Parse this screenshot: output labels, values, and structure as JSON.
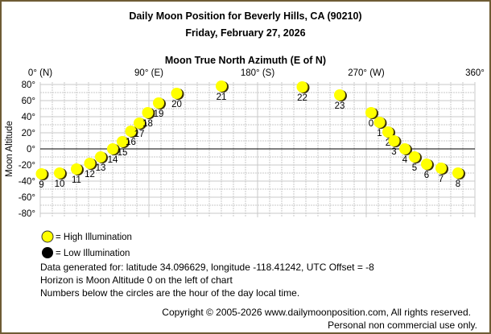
{
  "title": "Daily Moon Position for Beverly Hills, CA (90210)",
  "subtitle": "Friday, February 27, 2026",
  "legend": {
    "high": "= High Illumination",
    "low": "= Low Illumination",
    "high_color": "#ffff00",
    "low_color": "#000000"
  },
  "notes": [
    "Data generated for: latitude 34.096629, longitude -118.41242, UTC Offset = -8",
    "Horizon is Moon Altitude 0 on the left of chart",
    "Numbers below the circles are the hour of the day local time."
  ],
  "copyright": "Copyright © 2005-2026 www.dailymoonposition.com, All rights reserved.",
  "license": "Personal non commercial use only.",
  "chart_data": {
    "type": "scatter",
    "xlabel": "Moon True North Azimuth (E of N)",
    "ylabel": "Moon Altitude",
    "xlim": [
      0,
      360
    ],
    "ylim": [
      -80,
      80
    ],
    "grid": true,
    "x_ticks": [
      {
        "value": 0,
        "label": "0° (N)"
      },
      {
        "value": 90,
        "label": "90° (E)"
      },
      {
        "value": 180,
        "label": "180° (S)"
      },
      {
        "value": 270,
        "label": "270° (W)"
      },
      {
        "value": 360,
        "label": "360°"
      }
    ],
    "y_ticks": [
      {
        "value": 80,
        "label": "80°"
      },
      {
        "value": 60,
        "label": "60°"
      },
      {
        "value": 40,
        "label": "40°"
      },
      {
        "value": 20,
        "label": "20°"
      },
      {
        "value": 0,
        "label": "0°"
      },
      {
        "value": -20,
        "label": "-20°"
      },
      {
        "value": -40,
        "label": "-40°"
      },
      {
        "value": -60,
        "label": "-60°"
      },
      {
        "value": -80,
        "label": "-80°"
      }
    ],
    "illumination": "high",
    "points": [
      {
        "hour": "0",
        "az": 274,
        "alt": 45
      },
      {
        "hour": "1",
        "az": 281,
        "alt": 33
      },
      {
        "hour": "2",
        "az": 288,
        "alt": 21
      },
      {
        "hour": "3",
        "az": 293,
        "alt": 10
      },
      {
        "hour": "4",
        "az": 302,
        "alt": 0
      },
      {
        "hour": "5",
        "az": 310,
        "alt": -10
      },
      {
        "hour": "6",
        "az": 320,
        "alt": -19
      },
      {
        "hour": "7",
        "az": 332,
        "alt": -24
      },
      {
        "hour": "8",
        "az": 346,
        "alt": -30
      },
      {
        "hour": "9",
        "az": 1,
        "alt": -31
      },
      {
        "hour": "10",
        "az": 16,
        "alt": -30
      },
      {
        "hour": "11",
        "az": 30,
        "alt": -25
      },
      {
        "hour": "12",
        "az": 41,
        "alt": -18
      },
      {
        "hour": "13",
        "az": 50,
        "alt": -10
      },
      {
        "hour": "14",
        "az": 60,
        "alt": 0
      },
      {
        "hour": "15",
        "az": 68,
        "alt": 9
      },
      {
        "hour": "16",
        "az": 75,
        "alt": 22
      },
      {
        "hour": "17",
        "az": 82,
        "alt": 32
      },
      {
        "hour": "18",
        "az": 89,
        "alt": 45
      },
      {
        "hour": "19",
        "az": 98,
        "alt": 57
      },
      {
        "hour": "20",
        "az": 113,
        "alt": 69
      },
      {
        "hour": "21",
        "az": 150,
        "alt": 78
      },
      {
        "hour": "22",
        "az": 217,
        "alt": 77
      },
      {
        "hour": "23",
        "az": 248,
        "alt": 67
      }
    ]
  }
}
